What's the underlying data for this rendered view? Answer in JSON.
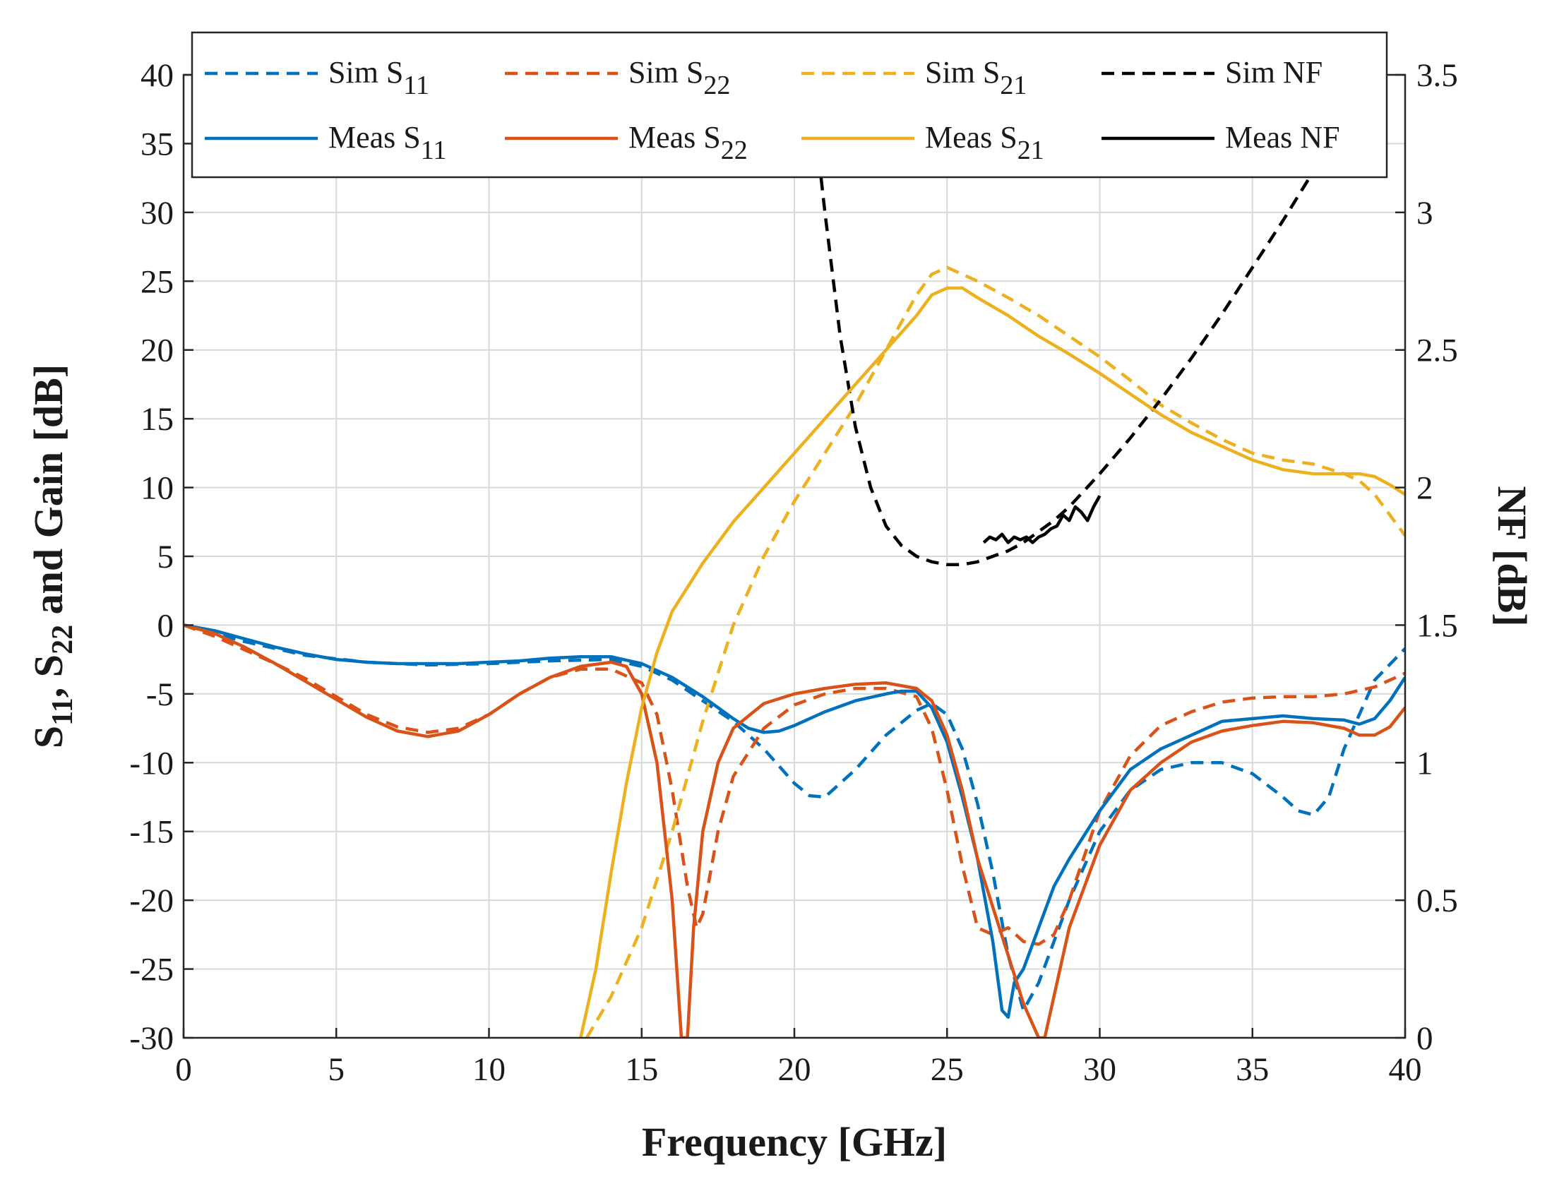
{
  "chart_data": {
    "type": "line",
    "xlabel": "Frequency [GHz]",
    "ylabel_parts": [
      "S",
      "11",
      ", S",
      "22",
      " and Gain [dB]"
    ],
    "y2label": "NF [dB]",
    "xlim": [
      0,
      40
    ],
    "ylim": [
      -30,
      40
    ],
    "y2lim": [
      0,
      3.5
    ],
    "grid": true,
    "legend_position": "top",
    "x_ticks": [
      0,
      5,
      10,
      15,
      20,
      25,
      30,
      35,
      40
    ],
    "y_ticks": [
      -30,
      -25,
      -20,
      -15,
      -10,
      -5,
      0,
      5,
      10,
      15,
      20,
      25,
      30,
      35,
      40
    ],
    "y2_ticks": [
      "0",
      "0.5",
      "1",
      "1.5",
      "2",
      "2.5",
      "3",
      "3.5"
    ],
    "series": [
      {
        "key": "sim_s11",
        "label": "Sim S",
        "sub": "11",
        "color": "#0072BD",
        "style": "dashed",
        "axis": "left",
        "x": [
          0,
          2,
          4,
          6,
          8,
          10,
          12,
          14,
          15,
          16,
          17,
          18,
          19,
          20,
          20.5,
          21,
          22,
          23,
          24,
          24.5,
          25,
          25.5,
          26,
          26.5,
          27,
          27.5,
          28,
          29,
          30,
          31,
          32,
          33,
          34,
          35,
          36,
          36.5,
          37,
          37.5,
          38,
          39,
          40
        ],
        "y": [
          0,
          -1.2,
          -2.2,
          -2.7,
          -2.9,
          -2.8,
          -2.6,
          -2.5,
          -3,
          -4,
          -5.5,
          -7,
          -9,
          -11.5,
          -12.4,
          -12.5,
          -10.5,
          -8,
          -6.2,
          -5.7,
          -6.5,
          -9,
          -13,
          -18,
          -24,
          -28,
          -26,
          -20,
          -15,
          -12,
          -10.5,
          -10,
          -10,
          -10.8,
          -12.5,
          -13.5,
          -13.8,
          -12.5,
          -9,
          -4,
          -1.7
        ]
      },
      {
        "key": "sim_s22",
        "label": "Sim S",
        "sub": "22",
        "color": "#D95319",
        "style": "dashed",
        "axis": "left",
        "x": [
          0,
          1,
          2,
          3,
          4,
          5,
          6,
          7,
          8,
          9,
          10,
          11,
          12,
          13,
          14,
          15,
          15.5,
          16,
          16.5,
          16.8,
          17,
          17.5,
          18,
          19,
          20,
          21,
          22,
          23,
          24,
          24.5,
          25,
          25.5,
          26,
          26.5,
          27,
          27.5,
          28,
          28.5,
          29,
          30,
          31,
          32,
          33,
          34,
          35,
          36,
          37,
          38,
          39,
          40
        ],
        "y": [
          0,
          -0.8,
          -1.8,
          -2.8,
          -3.9,
          -5.2,
          -6.5,
          -7.4,
          -7.8,
          -7.5,
          -6.5,
          -5,
          -3.8,
          -3.2,
          -3.2,
          -4.2,
          -6.5,
          -12,
          -19,
          -22,
          -21,
          -15,
          -11,
          -7.5,
          -5.8,
          -5,
          -4.6,
          -4.6,
          -5.2,
          -7.5,
          -12,
          -17.5,
          -22,
          -22.5,
          -22,
          -23,
          -23.2,
          -22.5,
          -20,
          -13.5,
          -9.5,
          -7.3,
          -6.3,
          -5.6,
          -5.3,
          -5.2,
          -5.2,
          -5,
          -4.5,
          -3.5
        ]
      },
      {
        "key": "sim_s21",
        "label": "Sim S",
        "sub": "21",
        "color": "#EDB120",
        "style": "dashed",
        "axis": "left",
        "x": [
          13.2,
          14,
          15,
          16,
          17,
          18,
          19,
          20,
          21,
          22,
          23,
          24,
          24.5,
          25,
          25.5,
          26,
          27,
          28,
          29,
          30,
          31,
          32,
          33,
          34,
          35,
          36,
          37,
          38,
          38.5,
          39,
          39.5,
          40
        ],
        "y": [
          -30,
          -27,
          -22,
          -15,
          -7,
          0,
          5,
          9,
          12.5,
          16,
          20,
          24,
          25.5,
          26,
          25.5,
          25,
          23.8,
          22.5,
          21,
          19.5,
          17.8,
          16,
          14.7,
          13.5,
          12.5,
          12,
          11.7,
          11,
          10.5,
          9.5,
          8,
          6.5
        ]
      },
      {
        "key": "sim_nf",
        "label": "Sim NF",
        "sub": "",
        "color": "#000000",
        "style": "dashed",
        "axis": "right",
        "x": [
          20.8,
          21,
          21.5,
          22,
          22.5,
          23,
          23.5,
          24,
          24.5,
          25,
          25.5,
          26,
          26.5,
          27,
          27.5,
          28,
          28.5,
          29,
          30,
          31,
          32,
          33,
          34,
          35,
          36,
          37,
          37.5
        ],
        "y": [
          3.2,
          3.0,
          2.55,
          2.22,
          2.0,
          1.86,
          1.79,
          1.75,
          1.73,
          1.72,
          1.72,
          1.73,
          1.75,
          1.77,
          1.8,
          1.84,
          1.88,
          1.93,
          2.05,
          2.18,
          2.32,
          2.47,
          2.63,
          2.8,
          2.97,
          3.15,
          3.27
        ]
      },
      {
        "key": "meas_s11",
        "label": "Meas S",
        "sub": "11",
        "color": "#0072BD",
        "style": "solid",
        "axis": "left",
        "x": [
          0,
          1,
          2,
          3,
          4,
          5,
          6,
          7,
          8,
          9,
          10,
          11,
          12,
          13,
          14,
          15,
          16,
          17,
          18,
          18.5,
          19,
          19.5,
          20,
          21,
          22,
          23,
          23.5,
          24,
          24.5,
          25,
          25.5,
          26,
          26.5,
          26.8,
          27,
          27.2,
          27.5,
          28,
          28.5,
          29,
          30,
          31,
          32,
          33,
          34,
          35,
          36,
          37,
          38,
          38.5,
          39,
          39.5,
          40
        ],
        "y": [
          0,
          -0.4,
          -1,
          -1.6,
          -2.1,
          -2.5,
          -2.7,
          -2.8,
          -2.8,
          -2.8,
          -2.7,
          -2.6,
          -2.4,
          -2.3,
          -2.3,
          -2.8,
          -3.8,
          -5.2,
          -6.8,
          -7.5,
          -7.8,
          -7.7,
          -7.3,
          -6.3,
          -5.5,
          -5,
          -4.8,
          -4.8,
          -6,
          -8.5,
          -12.5,
          -17,
          -23,
          -28,
          -28.5,
          -26,
          -25,
          -22,
          -19,
          -17,
          -13.5,
          -10.5,
          -9,
          -8,
          -7,
          -6.8,
          -6.6,
          -6.8,
          -6.9,
          -7.2,
          -6.8,
          -5.5,
          -3.8
        ]
      },
      {
        "key": "meas_s22",
        "label": "Meas S",
        "sub": "22",
        "color": "#D95319",
        "style": "solid",
        "axis": "left",
        "x": [
          0,
          1,
          2,
          3,
          4,
          5,
          6,
          7,
          8,
          9,
          10,
          11,
          12,
          13,
          14,
          14.5,
          15,
          15.5,
          16,
          16.3,
          16.5,
          16.7,
          17,
          17.5,
          18,
          19,
          20,
          21,
          22,
          23,
          24,
          24.5,
          25,
          25.5,
          26,
          26.5,
          27,
          27.5,
          28,
          28.2,
          28.5,
          29,
          30,
          31,
          32,
          33,
          34,
          35,
          36,
          37,
          38,
          38.5,
          39,
          39.5,
          40
        ],
        "y": [
          0,
          -0.6,
          -1.6,
          -2.8,
          -4.1,
          -5.4,
          -6.7,
          -7.7,
          -8.1,
          -7.7,
          -6.5,
          -5,
          -3.8,
          -3,
          -2.7,
          -3,
          -5,
          -10,
          -20,
          -30,
          -30,
          -22,
          -15,
          -10,
          -7.5,
          -5.7,
          -5,
          -4.6,
          -4.3,
          -4.2,
          -4.6,
          -5.5,
          -8,
          -12,
          -17,
          -20.5,
          -24,
          -27.5,
          -30,
          -30,
          -27,
          -22,
          -16,
          -12,
          -10,
          -8.5,
          -7.7,
          -7.3,
          -7,
          -7.1,
          -7.5,
          -8,
          -8,
          -7.4,
          -6
        ]
      },
      {
        "key": "meas_s21",
        "label": "Meas S",
        "sub": "21",
        "color": "#EDB120",
        "style": "solid",
        "axis": "left",
        "x": [
          13,
          13.5,
          14,
          14.5,
          15,
          15.5,
          16,
          17,
          18,
          19,
          20,
          21,
          22,
          23,
          24,
          24.5,
          25,
          25.5,
          26,
          27,
          28,
          29,
          30,
          31,
          32,
          33,
          34,
          35,
          36,
          37,
          38,
          38.5,
          39,
          39.5,
          40
        ],
        "y": [
          -30,
          -25,
          -18,
          -11.5,
          -6,
          -2,
          1,
          4.5,
          7.5,
          10,
          12.5,
          15,
          17.5,
          20,
          22.5,
          24,
          24.5,
          24.5,
          23.8,
          22.5,
          21,
          19.7,
          18.3,
          16.8,
          15.3,
          14,
          13,
          12,
          11.3,
          11,
          11,
          11,
          10.8,
          10.2,
          9.5
        ]
      },
      {
        "key": "meas_nf",
        "label": "Meas NF",
        "sub": "",
        "color": "#000000",
        "style": "solid",
        "axis": "right",
        "x": [
          26.2,
          26.4,
          26.6,
          26.8,
          27,
          27.2,
          27.4,
          27.6,
          27.8,
          28,
          28.2,
          28.4,
          28.6,
          28.8,
          29,
          29.2,
          29.4,
          29.6,
          29.8,
          30
        ],
        "y": [
          1.8,
          1.82,
          1.81,
          1.83,
          1.8,
          1.82,
          1.81,
          1.82,
          1.8,
          1.82,
          1.83,
          1.85,
          1.86,
          1.9,
          1.88,
          1.93,
          1.91,
          1.88,
          1.93,
          1.97
        ]
      }
    ],
    "legend_order": [
      "sim_s11",
      "sim_s22",
      "sim_s21",
      "sim_nf",
      "meas_s11",
      "meas_s22",
      "meas_s21",
      "meas_nf"
    ]
  }
}
